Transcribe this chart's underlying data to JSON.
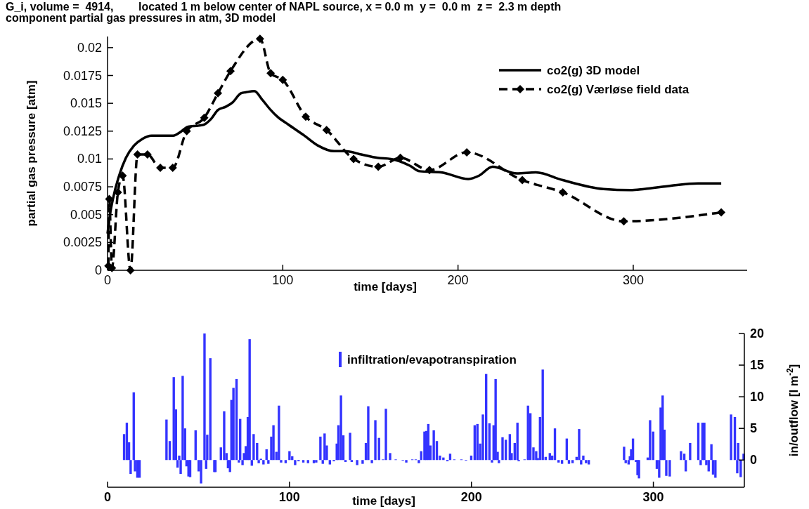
{
  "chart_data": [
    {
      "type": "line",
      "title": "G_i, volume =  4914,        located 1 m below center of NAPL source, x = 0.0 m  y =  0.0 m  z =  2.3 m depth",
      "subtitle": "component partial gas pressures in atm, 3D model",
      "xlabel": "time [days]",
      "ylabel": "partial gas pressure [atm]",
      "xlim": [
        0,
        365
      ],
      "xticks": [
        0,
        100,
        200,
        300
      ],
      "ylim": [
        0,
        0.021
      ],
      "yticks": [
        0,
        0.0025,
        0.005,
        0.0075,
        0.01,
        0.0125,
        0.015,
        0.0175,
        0.02
      ],
      "legend": "top right",
      "grid": false,
      "series": [
        {
          "name": "co2(g) 3D model",
          "color": "#000000",
          "line_style": "solid",
          "marker": "none",
          "x": [
            0,
            1.2,
            3.5,
            6.6,
            10.5,
            15.1,
            19.8,
            25.2,
            31.3,
            37.5,
            41.4,
            46,
            52.2,
            55.2,
            59.1,
            63,
            67.6,
            71.5,
            76.1,
            79.2,
            83.8,
            88.4,
            93.1,
            96.9,
            103.1,
            112.3,
            120.1,
            129.3,
            135.5,
            144.8,
            154,
            161.7,
            172.5,
            178,
            190.3,
            205.8,
            212,
            219.7,
            233.6,
            244.4,
            259.8,
            283,
            298.4,
            306.2,
            321.6,
            337,
            350.2
          ],
          "values": [
            0.0033,
            0.0048,
            0.0067,
            0.0085,
            0.0101,
            0.0112,
            0.0118,
            0.0121,
            0.0121,
            0.0121,
            0.0124,
            0.0129,
            0.013,
            0.0131,
            0.0136,
            0.0144,
            0.0147,
            0.0151,
            0.0159,
            0.016,
            0.0161,
            0.0153,
            0.0144,
            0.0138,
            0.0131,
            0.0121,
            0.0112,
            0.0107,
            0.0107,
            0.0104,
            0.0101,
            0.01,
            0.0094,
            0.0089,
            0.0088,
            0.0082,
            0.0085,
            0.0093,
            0.0087,
            0.0088,
            0.0081,
            0.0073,
            0.0072,
            0.0073,
            0.0076,
            0.0078,
            0.0078
          ]
        },
        {
          "name": "co2(g) Værløse field data",
          "color": "#000000",
          "line_style": "dashed",
          "marker": "diamond",
          "x": [
            0.5,
            1,
            2.5,
            5.9,
            8.6,
            13.1,
            17.1,
            22.8,
            30.1,
            37.2,
            45.2,
            55.2,
            63,
            70.2,
            87,
            93.1,
            100,
            113.1,
            125,
            140.4,
            154.5,
            167.1,
            183.7,
            205,
            236.7,
            259.8,
            294.6,
            350.2
          ],
          "values": [
            0.0004,
            0.0064,
            0.0002,
            0.007,
            0.0085,
            0,
            0.0104,
            0.0104,
            0.0092,
            0.0092,
            0.0125,
            0.0137,
            0.0159,
            0.0179,
            0.0208,
            0.0177,
            0.0171,
            0.0138,
            0.0126,
            0.01,
            0.0093,
            0.0101,
            0.009,
            0.0106,
            0.0081,
            0.007,
            0.0044,
            0.0052
          ]
        }
      ]
    },
    {
      "type": "bar",
      "xlabel": "time [days]",
      "ylabel": "in/outflow [l m$^{-2}$]",
      "xlim": [
        0,
        350
      ],
      "xticks": [
        0,
        100,
        200,
        300
      ],
      "ylim": [
        -4.3,
        20
      ],
      "yticks": [
        0,
        5,
        10,
        15,
        20
      ],
      "legend": "top",
      "grid": false,
      "series": [
        {
          "name": "infiltration/evapotranspiration",
          "color": "#3333ff",
          "x": [
            9.1,
            10.6,
            11.8,
            12.7,
            14.4,
            15.1,
            16.4,
            17.6,
            32.4,
            34.2,
            36.4,
            37.6,
            38.5,
            39.4,
            40.2,
            41.3,
            42.6,
            43.4,
            44.5,
            45.4,
            48.4,
            50.1,
            51.4,
            53.3,
            54.2,
            54.8,
            56.5,
            58.7,
            59.3,
            62.3,
            64.1,
            65.4,
            66.2,
            67.3,
            68.1,
            69.2,
            70.9,
            72.2,
            72.9,
            74.2,
            75,
            76,
            77.1,
            78.1,
            79.3,
            80.3,
            82.2,
            83.1,
            84.3,
            85.7,
            87.4,
            88.4,
            90,
            91.2,
            92.8,
            94.2,
            95.4,
            97.9,
            100,
            101.5,
            103.1,
            105,
            107.6,
            110.2,
            113.4,
            114.7,
            117,
            118.3,
            119.3,
            120.5,
            122.2,
            124.4,
            126,
            126.9,
            128.3,
            129.6,
            130.8,
            133.3,
            134.2,
            137.2,
            140.2,
            142,
            143.3,
            145.3,
            147.2,
            149.2,
            151.4,
            153,
            155.3,
            158.4,
            162.3,
            164.2,
            167.5,
            169.4,
            171.1,
            172.4,
            174.2,
            175.2,
            176.3,
            177.5,
            179.3,
            181,
            182.7,
            184.6,
            186.8,
            188.3,
            190.6,
            194.5,
            197,
            199.9,
            201.8,
            203.3,
            204.8,
            206.3,
            208.1,
            209.9,
            211.3,
            212.2,
            213.3,
            214.4,
            215.1,
            217.1,
            218.9,
            221.1,
            222.1,
            223.8,
            225.3,
            226,
            229.2,
            231.1,
            232.4,
            234.1,
            235.6,
            236.5,
            237.7,
            239.2,
            240.8,
            243.1,
            244.4,
            245.9,
            247.9,
            249.8,
            252.4,
            253.6,
            255.6,
            257.8,
            259.2,
            260.3,
            261.5,
            263,
            264.5,
            283.9,
            284.8,
            286.4,
            287.1,
            287.8,
            288.8,
            290.4,
            291.3,
            292.1,
            296.9,
            298.2,
            299.9,
            301.9,
            303.2,
            304,
            305.1,
            306.1,
            307.1,
            309,
            315.2,
            317,
            317.8,
            320.2,
            324.7,
            326,
            327,
            328,
            329.1,
            330.4,
            331.9,
            332.8,
            334.1,
            342.7,
            344.8,
            346.1,
            346.6,
            348,
            349.6
          ],
          "values": [
            4.1,
            5.9,
            2.8,
            -2.2,
            10.7,
            -1.8,
            -2.8,
            -2.8,
            6.4,
            3.0,
            13.1,
            8.0,
            -1.2,
            0.7,
            -2.2,
            13.3,
            5.0,
            -1.0,
            -2.6,
            -2.7,
            4.7,
            -1.8,
            -3.7,
            20.0,
            -1.4,
            4.0,
            16.1,
            -1.9,
            -1.9,
            2.0,
            7.7,
            1.1,
            -1.3,
            -1.9,
            9.5,
            11.4,
            12.8,
            -0.4,
            6.5,
            -0.8,
            1.1,
            2.2,
            6.8,
            19.1,
            -0.9,
            4.1,
            2.7,
            -0.5,
            0.2,
            -0.7,
            1.7,
            -0.6,
            3.7,
            5.5,
            1.3,
            8.6,
            -0.4,
            -0.5,
            1.4,
            0.6,
            -0.8,
            -0.2,
            -0.4,
            -0.5,
            -0.5,
            -0.4,
            3.7,
            -0.6,
            4.2,
            2.3,
            -0.7,
            -0.2,
            2.6,
            5.5,
            10.2,
            3.9,
            -0.3,
            4.3,
            -0.3,
            -0.8,
            -0.6,
            2.7,
            8.5,
            -0.5,
            6.3,
            3.5,
            0.1,
            8.1,
            1.1,
            0.1,
            -0.1,
            -0.4,
            0.1,
            0.1,
            -0.5,
            1.4,
            4.5,
            4.6,
            5.7,
            2.3,
            4.7,
            3.0,
            0.7,
            0.4,
            -0.2,
            1.0,
            0.1,
            0.1,
            -0.1,
            0.7,
            5.5,
            5.7,
            2.6,
            7.2,
            13.6,
            5.8,
            -0.4,
            5.5,
            12.8,
            1.3,
            -0.5,
            3.6,
            3.2,
            4.1,
            1.1,
            2.7,
            5.9,
            -0.2,
            0.1,
            8.6,
            7.4,
            2.0,
            1.4,
            0.3,
            6.8,
            14.3,
            0.5,
            1.1,
            0.7,
            5.0,
            -0.4,
            -0.6,
            3.4,
            -0.6,
            -0.5,
            0.5,
            4.9,
            -0.7,
            0.7,
            -0.5,
            -0.7,
            2.1,
            -0.5,
            -0.7,
            0.6,
            1.7,
            3.4,
            -0.3,
            -2.4,
            -2.9,
            0.4,
            6.3,
            4.5,
            -1.4,
            -2.8,
            8.3,
            10.2,
            4.8,
            -2.5,
            -2.6,
            1.4,
            1.0,
            -1.8,
            2.7,
            5.9,
            -0.8,
            5.9,
            5.9,
            -0.8,
            -1.8,
            2.5,
            -2.3,
            -2.8,
            7.2,
            6.8,
            -2.1,
            2.7,
            -2.7,
            1.0
          ]
        }
      ]
    }
  ]
}
